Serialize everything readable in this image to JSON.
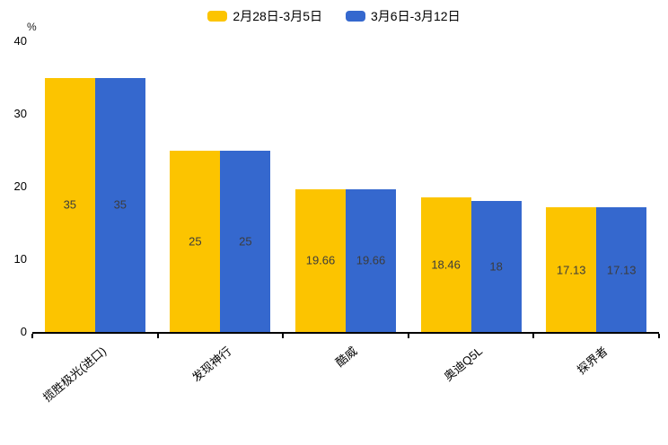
{
  "chart_data": {
    "type": "bar",
    "title": "",
    "categories": [
      "揽胜极光(进口)",
      "发现神行",
      "酷威",
      "奥迪Q5L",
      "探界者"
    ],
    "series": [
      {
        "name": "2月28日-3月5日",
        "color": "#FCC400",
        "values": [
          35,
          25,
          19.66,
          18.46,
          17.13
        ]
      },
      {
        "name": "3月6日-3月12日",
        "color": "#3568CE",
        "values": [
          35,
          25,
          19.66,
          18,
          17.13
        ]
      }
    ],
    "bar_labels": [
      [
        "35",
        "25",
        "19.66",
        "18.46",
        "17.13"
      ],
      [
        "35",
        "25",
        "19.66",
        "18",
        "17.13"
      ]
    ],
    "xlabel": "",
    "ylabel": "%",
    "ylim": [
      0,
      40
    ],
    "yticks": [
      0,
      10,
      20,
      30,
      40
    ],
    "grid": false,
    "legend_position": "top-center",
    "bar_label_color": "#3c3c3c",
    "axis_color": "#000000"
  },
  "axis": {
    "unit_label": "%"
  }
}
